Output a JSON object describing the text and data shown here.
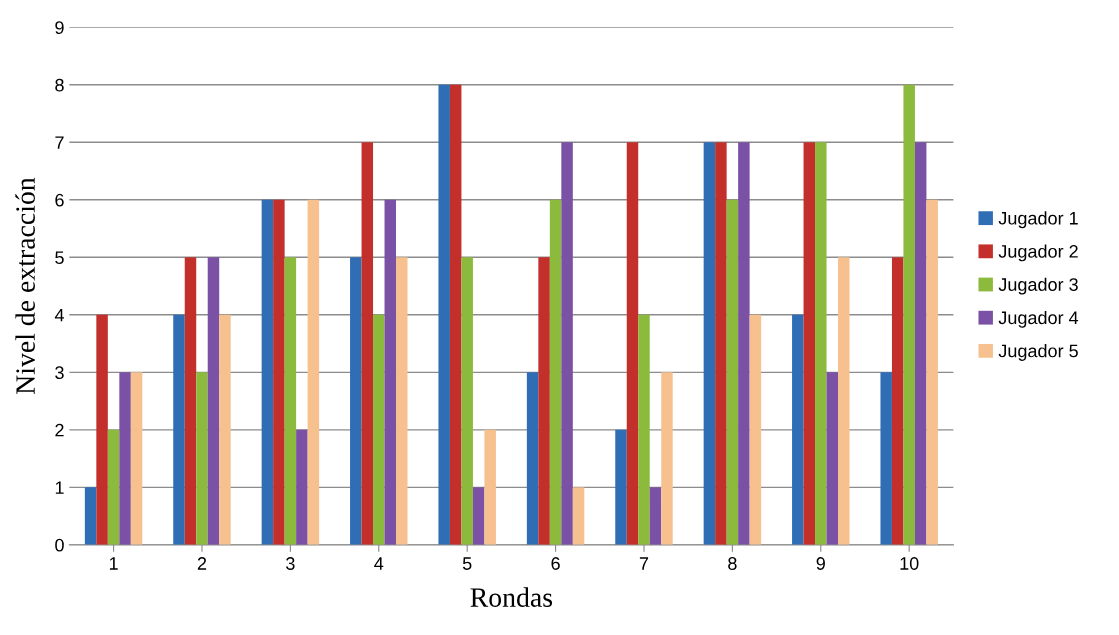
{
  "chart_data": {
    "type": "bar",
    "xlabel": "Rondas",
    "ylabel": "Nivel de extracción",
    "categories": [
      "1",
      "2",
      "3",
      "4",
      "5",
      "6",
      "7",
      "8",
      "9",
      "10"
    ],
    "series": [
      {
        "name": "Jugador 1",
        "color": "#2f6db5",
        "values": [
          1,
          4,
          6,
          5,
          8,
          3,
          2,
          7,
          4,
          3
        ]
      },
      {
        "name": "Jugador 2",
        "color": "#c3302b",
        "values": [
          4,
          5,
          6,
          7,
          8,
          5,
          7,
          7,
          7,
          5
        ]
      },
      {
        "name": "Jugador 3",
        "color": "#8cba3c",
        "values": [
          2,
          3,
          5,
          4,
          5,
          6,
          4,
          6,
          7,
          8
        ]
      },
      {
        "name": "Jugador 4",
        "color": "#7a51a4",
        "values": [
          3,
          5,
          2,
          6,
          1,
          7,
          1,
          7,
          3,
          7
        ]
      },
      {
        "name": "Jugador 5",
        "color": "#f6c18f",
        "values": [
          3,
          4,
          6,
          5,
          2,
          1,
          3,
          4,
          5,
          6
        ]
      }
    ],
    "ylim": [
      0,
      9
    ],
    "yticks": [
      0,
      1,
      2,
      3,
      4,
      5,
      6,
      7,
      8,
      9
    ],
    "grid": "y",
    "legend": "right"
  }
}
